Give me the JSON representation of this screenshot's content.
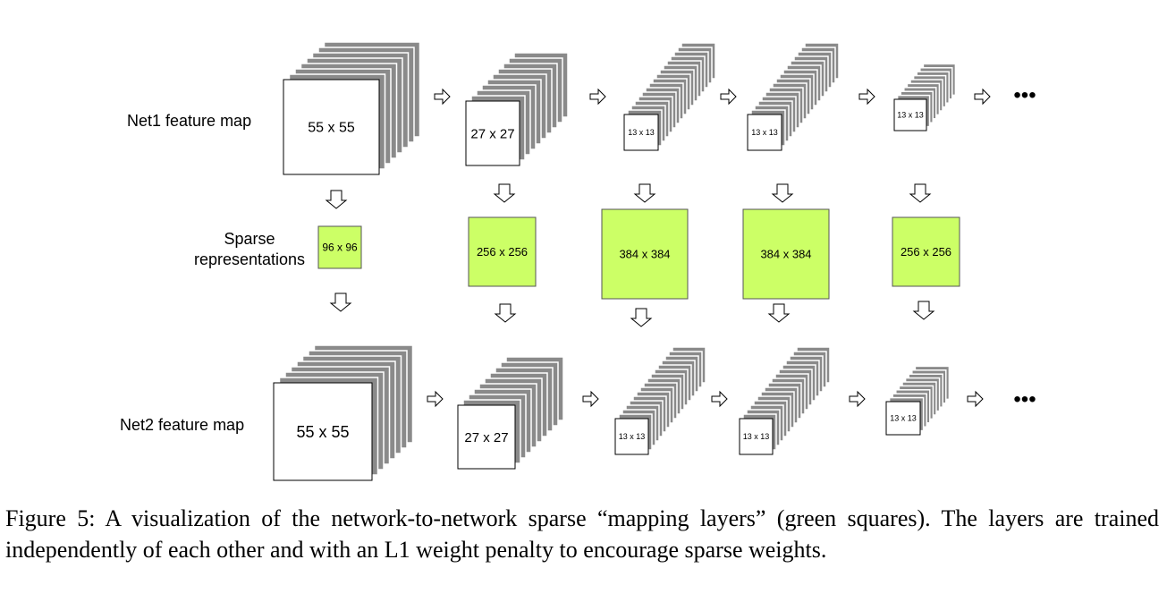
{
  "net1": {
    "label": "Net1  feature map",
    "maps": [
      "55 x 55",
      "27 x 27",
      "13 x 13",
      "13 x 13",
      "13 x 13"
    ]
  },
  "sparse": {
    "label_line1": "Sparse",
    "label_line2": "representations",
    "maps": [
      "96 x 96",
      "256 x 256",
      "384 x 384",
      "384 x 384",
      "256 x 256"
    ],
    "color": "#ccff66"
  },
  "net2": {
    "label": "Net2  feature map",
    "maps": [
      "55 x 55",
      "27 x 27",
      "13 x 13",
      "13 x 13",
      "13 x 13"
    ]
  },
  "continuation_marker": "•••",
  "caption": "Figure 5: A visualization of the network-to-network sparse “mapping layers” (green squares). The layers are trained independently of each other and with an L1 weight penalty to encourage sparse weights."
}
